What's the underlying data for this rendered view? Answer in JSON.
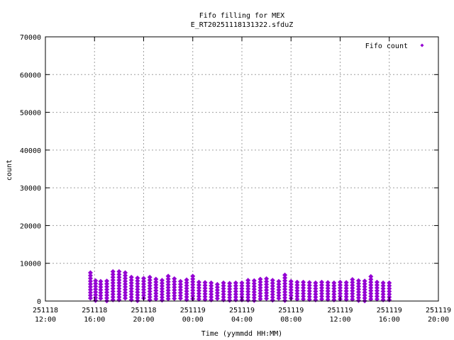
{
  "chart_data": {
    "type": "scatter",
    "title": [
      "Fifo filling for MEX",
      "E_RT20251118131322.sfduZ"
    ],
    "xlabel": "Time (yymmdd HH:MM)",
    "ylabel": "count",
    "ylim": [
      0,
      70000
    ],
    "y_ticks": [
      "0",
      "10000",
      "20000",
      "30000",
      "40000",
      "50000",
      "60000",
      "70000"
    ],
    "x_ticks": [
      {
        "date": "251118",
        "time": "12:00"
      },
      {
        "date": "251118",
        "time": "16:00"
      },
      {
        "date": "251118",
        "time": "20:00"
      },
      {
        "date": "251119",
        "time": "00:00"
      },
      {
        "date": "251119",
        "time": "04:00"
      },
      {
        "date": "251119",
        "time": "08:00"
      },
      {
        "date": "251119",
        "time": "12:00"
      },
      {
        "date": "251119",
        "time": "16:00"
      },
      {
        "date": "251119",
        "time": "20:00"
      }
    ],
    "xlim": [
      "251118 12:00",
      "251119 20:00"
    ],
    "grid": true,
    "legend_position": "top-right",
    "series": [
      {
        "name": "Fifo count",
        "color": "#9400d3",
        "marker": "diamond",
        "x": [
          "251118 15:40",
          "251118 16:05",
          "251118 16:30",
          "251118 17:00",
          "251118 17:30",
          "251118 18:00",
          "251118 18:30",
          "251118 19:00",
          "251118 19:30",
          "251118 20:00",
          "251118 20:30",
          "251118 21:00",
          "251118 21:30",
          "251118 22:00",
          "251118 22:30",
          "251118 23:00",
          "251118 23:30",
          "251119 00:00",
          "251119 00:30",
          "251119 01:00",
          "251119 01:30",
          "251119 02:00",
          "251119 02:30",
          "251119 03:00",
          "251119 03:30",
          "251119 04:00",
          "251119 04:30",
          "251119 05:00",
          "251119 05:30",
          "251119 06:00",
          "251119 06:30",
          "251119 07:00",
          "251119 07:30",
          "251119 08:00",
          "251119 08:30",
          "251119 09:00",
          "251119 09:30",
          "251119 10:00",
          "251119 10:30",
          "251119 11:00",
          "251119 11:30",
          "251119 12:00",
          "251119 12:30",
          "251119 13:00",
          "251119 13:30",
          "251119 14:00",
          "251119 14:30",
          "251119 15:00",
          "251119 15:30",
          "251119 16:00"
        ],
        "y": [
          7500,
          5400,
          5200,
          5300,
          7800,
          7800,
          7500,
          6300,
          6100,
          6000,
          6300,
          5800,
          5500,
          6600,
          5900,
          5200,
          5600,
          6600,
          5000,
          4900,
          4800,
          4400,
          4800,
          4700,
          4800,
          4800,
          5500,
          5400,
          5800,
          5900,
          5500,
          5200,
          6900,
          5200,
          5000,
          5000,
          4900,
          4800,
          5000,
          4900,
          4800,
          5000,
          4900,
          5700,
          5400,
          5300,
          6500,
          5000,
          4800,
          4800
        ]
      }
    ]
  }
}
